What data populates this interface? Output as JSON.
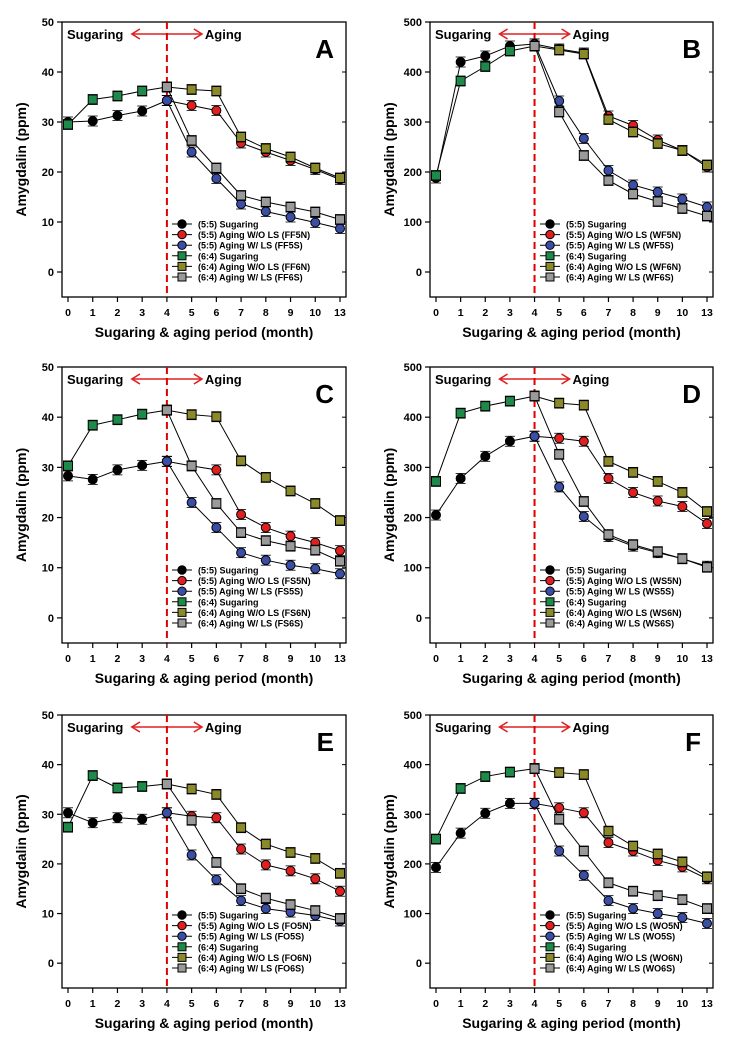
{
  "colors": {
    "sugaring_5_5": "#000000",
    "aging_wo_ls_5_5": "#e02020",
    "aging_w_ls_5_5": "#3a4ea8",
    "sugaring_6_4": "#1e8a4a",
    "aging_wo_ls_6_4": "#8a8a2a",
    "aging_w_ls_6_4": "#9a9a9a",
    "divider": "#e00000",
    "arrow": "#e02020"
  },
  "chart_data": [
    {
      "type": "line",
      "panel_letter": "A",
      "xlabel": "Sugaring & aging period (month)",
      "ylabel": "Amygdalin (ppm)",
      "x_ticks": [
        "0",
        "1",
        "2",
        "3",
        "4",
        "5",
        "6",
        "7",
        "8",
        "9",
        "10",
        "13"
      ],
      "ylim": [
        -5,
        50
      ],
      "y_ticks": [
        0,
        10,
        20,
        30,
        40,
        50
      ],
      "phase_labels": [
        "Sugaring",
        "Aging"
      ],
      "legend_position": "bottom-right",
      "series": [
        {
          "name": "(5:5) Sugaring",
          "color_key": "sugaring_5_5",
          "marker": "circle",
          "x_index": [
            0,
            1,
            2,
            3,
            4
          ],
          "values": [
            30.0,
            30.2,
            31.3,
            32.2,
            34.3
          ]
        },
        {
          "name": "(5:5) Aging W/O LS (FF5N)",
          "color_key": "aging_wo_ls_5_5",
          "marker": "circle",
          "x_index": [
            4,
            5,
            6,
            7,
            8,
            9,
            10,
            11
          ],
          "values": [
            34.3,
            33.3,
            32.3,
            25.8,
            24.0,
            22.3,
            20.5,
            18.5
          ]
        },
        {
          "name": "(5:5) Aging W/ LS (FF5S)",
          "color_key": "aging_w_ls_5_5",
          "marker": "circle",
          "x_index": [
            4,
            5,
            6,
            7,
            8,
            9,
            10,
            11
          ],
          "values": [
            34.3,
            24.0,
            18.7,
            13.6,
            12.1,
            11.0,
            9.9,
            8.7
          ]
        },
        {
          "name": "(6:4) Sugaring",
          "color_key": "sugaring_6_4",
          "marker": "square",
          "x_index": [
            0,
            1,
            2,
            3,
            4
          ],
          "values": [
            29.5,
            34.5,
            35.2,
            36.2,
            37.0
          ]
        },
        {
          "name": "(6:4) Aging W/O LS (FF6N)",
          "color_key": "aging_wo_ls_6_4",
          "marker": "square",
          "x_index": [
            4,
            5,
            6,
            7,
            8,
            9,
            10,
            11
          ],
          "values": [
            37.0,
            36.5,
            36.2,
            27.0,
            24.7,
            23.0,
            20.8,
            18.8
          ]
        },
        {
          "name": "(6:4) Aging W/ LS (FF6S)",
          "color_key": "aging_w_ls_6_4",
          "marker": "square",
          "x_index": [
            4,
            5,
            6,
            7,
            8,
            9,
            10,
            11
          ],
          "values": [
            37.0,
            26.3,
            20.8,
            15.3,
            14.0,
            13.0,
            12.0,
            10.5
          ]
        }
      ]
    },
    {
      "type": "line",
      "panel_letter": "B",
      "xlabel": "Sugaring & aging period (month)",
      "ylabel": "Amygdalin (ppm)",
      "x_ticks": [
        "0",
        "1",
        "2",
        "3",
        "4",
        "5",
        "6",
        "7",
        "8",
        "9",
        "10",
        "13"
      ],
      "ylim": [
        -50,
        500
      ],
      "y_ticks": [
        0,
        100,
        200,
        300,
        400,
        500
      ],
      "phase_labels": [
        "Sugaring",
        "Aging"
      ],
      "legend_position": "bottom-right",
      "series": [
        {
          "name": "(5:5) Sugaring",
          "color_key": "sugaring_5_5",
          "marker": "circle",
          "x_index": [
            0,
            1,
            2,
            3,
            4
          ],
          "values": [
            188,
            420,
            432,
            452,
            456
          ]
        },
        {
          "name": "(5:5) Aging W/O LS (WF5N)",
          "color_key": "aging_wo_ls_5_5",
          "marker": "circle",
          "x_index": [
            4,
            5,
            6,
            7,
            8,
            9,
            10,
            11
          ],
          "values": [
            456,
            446,
            438,
            312,
            293,
            264,
            243,
            210
          ]
        },
        {
          "name": "(5:5) Aging W/ LS (WF5S)",
          "color_key": "aging_w_ls_5_5",
          "marker": "circle",
          "x_index": [
            4,
            5,
            6,
            7,
            8,
            9,
            10,
            11
          ],
          "values": [
            456,
            342,
            267,
            203,
            174,
            160,
            146,
            130
          ]
        },
        {
          "name": "(6:4) Sugaring",
          "color_key": "sugaring_6_4",
          "marker": "square",
          "x_index": [
            0,
            1,
            2,
            3,
            4
          ],
          "values": [
            193,
            382,
            411,
            442,
            452
          ]
        },
        {
          "name": "(6:4) Aging W/O LS (WF6N)",
          "color_key": "aging_wo_ls_6_4",
          "marker": "square",
          "x_index": [
            4,
            5,
            6,
            7,
            8,
            9,
            10,
            11
          ],
          "values": [
            452,
            444,
            436,
            305,
            280,
            257,
            243,
            214
          ]
        },
        {
          "name": "(6:4) Aging W/ LS (WF6S)",
          "color_key": "aging_w_ls_6_4",
          "marker": "square",
          "x_index": [
            4,
            5,
            6,
            7,
            8,
            9,
            10,
            11
          ],
          "values": [
            452,
            320,
            233,
            183,
            156,
            141,
            127,
            112
          ]
        }
      ]
    },
    {
      "type": "line",
      "panel_letter": "C",
      "xlabel": "Sugaring & aging period (month)",
      "ylabel": "Amygdalin (ppm)",
      "x_ticks": [
        "0",
        "1",
        "2",
        "3",
        "4",
        "5",
        "6",
        "7",
        "8",
        "9",
        "10",
        "13"
      ],
      "ylim": [
        -5,
        50
      ],
      "y_ticks": [
        0,
        10,
        20,
        30,
        40,
        50
      ],
      "phase_labels": [
        "Sugaring",
        "Aging"
      ],
      "legend_position": "bottom-right",
      "series": [
        {
          "name": "(5:5) Sugaring",
          "color_key": "sugaring_5_5",
          "marker": "circle",
          "x_index": [
            0,
            1,
            2,
            3,
            4
          ],
          "values": [
            28.3,
            27.6,
            29.5,
            30.4,
            31.2
          ]
        },
        {
          "name": "(5:5) Aging W/O LS (FS5N)",
          "color_key": "aging_wo_ls_5_5",
          "marker": "circle",
          "x_index": [
            4,
            5,
            6,
            7,
            8,
            9,
            10,
            11
          ],
          "values": [
            31.2,
            30.3,
            29.5,
            20.6,
            18.0,
            16.3,
            15.0,
            13.4
          ]
        },
        {
          "name": "(5:5) Aging W/ LS (FS5S)",
          "color_key": "aging_w_ls_5_5",
          "marker": "circle",
          "x_index": [
            4,
            5,
            6,
            7,
            8,
            9,
            10,
            11
          ],
          "values": [
            31.2,
            23.0,
            18.0,
            13.0,
            11.5,
            10.5,
            9.8,
            8.8
          ]
        },
        {
          "name": "(6:4) Sugaring",
          "color_key": "sugaring_6_4",
          "marker": "square",
          "x_index": [
            0,
            1,
            2,
            3,
            4
          ],
          "values": [
            30.3,
            38.4,
            39.5,
            40.6,
            41.4
          ]
        },
        {
          "name": "(6:4) Aging W/O LS (FS6N)",
          "color_key": "aging_wo_ls_6_4",
          "marker": "square",
          "x_index": [
            4,
            5,
            6,
            7,
            8,
            9,
            10,
            11
          ],
          "values": [
            41.4,
            40.5,
            40.1,
            31.3,
            28.0,
            25.3,
            22.8,
            19.4
          ]
        },
        {
          "name": "(6:4) Aging W/ LS (FS6S)",
          "color_key": "aging_w_ls_6_4",
          "marker": "square",
          "x_index": [
            4,
            5,
            6,
            7,
            8,
            9,
            10,
            11
          ],
          "values": [
            41.4,
            30.3,
            22.8,
            17.0,
            15.4,
            14.3,
            13.5,
            11.3
          ]
        }
      ]
    },
    {
      "type": "line",
      "panel_letter": "D",
      "xlabel": "Sugaring & aging period (month)",
      "ylabel": "Amygdalin (ppm)",
      "x_ticks": [
        "0",
        "1",
        "2",
        "3",
        "4",
        "5",
        "6",
        "7",
        "8",
        "9",
        "10",
        "13"
      ],
      "ylim": [
        -50,
        500
      ],
      "y_ticks": [
        0,
        100,
        200,
        300,
        400,
        500
      ],
      "phase_labels": [
        "Sugaring",
        "Aging"
      ],
      "legend_position": "bottom-right",
      "series": [
        {
          "name": "(5:5) Sugaring",
          "color_key": "sugaring_5_5",
          "marker": "circle",
          "x_index": [
            0,
            1,
            2,
            3,
            4
          ],
          "values": [
            205,
            278,
            322,
            352,
            362
          ]
        },
        {
          "name": "(5:5) Aging W/O LS (WS5N)",
          "color_key": "aging_wo_ls_5_5",
          "marker": "circle",
          "x_index": [
            4,
            5,
            6,
            7,
            8,
            9,
            10,
            11
          ],
          "values": [
            362,
            358,
            352,
            278,
            250,
            233,
            222,
            188
          ]
        },
        {
          "name": "(5:5) Aging W/ LS (WS5S)",
          "color_key": "aging_w_ls_5_5",
          "marker": "circle",
          "x_index": [
            4,
            5,
            6,
            7,
            8,
            9,
            10,
            11
          ],
          "values": [
            362,
            261,
            202,
            162,
            143,
            130,
            118,
            103
          ]
        },
        {
          "name": "(6:4) Sugaring",
          "color_key": "sugaring_6_4",
          "marker": "square",
          "x_index": [
            0,
            1,
            2,
            3,
            4
          ],
          "values": [
            272,
            408,
            422,
            432,
            442
          ]
        },
        {
          "name": "(6:4) Aging W/O LS (WS6N)",
          "color_key": "aging_wo_ls_6_4",
          "marker": "square",
          "x_index": [
            4,
            5,
            6,
            7,
            8,
            9,
            10,
            11
          ],
          "values": [
            442,
            428,
            424,
            312,
            290,
            272,
            250,
            212
          ]
        },
        {
          "name": "(6:4) Aging W/ LS (WS6S)",
          "color_key": "aging_w_ls_6_4",
          "marker": "square",
          "x_index": [
            4,
            5,
            6,
            7,
            8,
            9,
            10,
            11
          ],
          "values": [
            442,
            326,
            232,
            166,
            146,
            132,
            118,
            101
          ]
        }
      ]
    },
    {
      "type": "line",
      "panel_letter": "E",
      "xlabel": "Sugaring & aging period (month)",
      "ylabel": "Amygdalin (ppm)",
      "x_ticks": [
        "0",
        "1",
        "2",
        "3",
        "4",
        "5",
        "6",
        "7",
        "8",
        "9",
        "10",
        "13"
      ],
      "ylim": [
        -5,
        50
      ],
      "y_ticks": [
        0,
        10,
        20,
        30,
        40,
        50
      ],
      "phase_labels": [
        "Sugaring",
        "Aging"
      ],
      "legend_position": "bottom-right",
      "series": [
        {
          "name": "(5:5) Sugaring",
          "color_key": "sugaring_5_5",
          "marker": "circle",
          "x_index": [
            0,
            1,
            2,
            3,
            4
          ],
          "values": [
            30.3,
            28.3,
            29.3,
            29.0,
            30.3
          ]
        },
        {
          "name": "(5:5) Aging W/O LS (FO5N)",
          "color_key": "aging_wo_ls_5_5",
          "marker": "circle",
          "x_index": [
            4,
            5,
            6,
            7,
            8,
            9,
            10,
            11
          ],
          "values": [
            30.3,
            29.6,
            29.3,
            23.0,
            19.8,
            18.6,
            17.0,
            14.5
          ]
        },
        {
          "name": "(5:5) Aging W/ LS (FO5S)",
          "color_key": "aging_w_ls_5_5",
          "marker": "circle",
          "x_index": [
            4,
            5,
            6,
            7,
            8,
            9,
            10,
            11
          ],
          "values": [
            30.3,
            21.8,
            16.8,
            12.6,
            11.0,
            10.3,
            9.6,
            8.5
          ]
        },
        {
          "name": "(6:4) Sugaring",
          "color_key": "sugaring_6_4",
          "marker": "square",
          "x_index": [
            0,
            1,
            2,
            3,
            4
          ],
          "values": [
            27.4,
            37.8,
            35.3,
            35.6,
            36.1
          ]
        },
        {
          "name": "(6:4) Aging W/O LS (FO6N)",
          "color_key": "aging_wo_ls_6_4",
          "marker": "square",
          "x_index": [
            4,
            5,
            6,
            7,
            8,
            9,
            10,
            11
          ],
          "values": [
            36.1,
            35.1,
            34.0,
            27.3,
            24.0,
            22.3,
            21.1,
            18.1
          ]
        },
        {
          "name": "(6:4) Aging W/ LS (FO6S)",
          "color_key": "aging_w_ls_6_4",
          "marker": "square",
          "x_index": [
            4,
            5,
            6,
            7,
            8,
            9,
            10,
            11
          ],
          "values": [
            36.1,
            28.8,
            20.3,
            15.0,
            13.1,
            11.8,
            10.6,
            9.0
          ]
        }
      ]
    },
    {
      "type": "line",
      "panel_letter": "F",
      "xlabel": "Sugaring & aging period (month)",
      "ylabel": "Amygdalin (ppm)",
      "x_ticks": [
        "0",
        "1",
        "2",
        "3",
        "4",
        "5",
        "6",
        "7",
        "8",
        "9",
        "10",
        "13"
      ],
      "ylim": [
        -50,
        500
      ],
      "y_ticks": [
        0,
        100,
        200,
        300,
        400,
        500
      ],
      "phase_labels": [
        "Sugaring",
        "Aging"
      ],
      "legend_position": "bottom-right",
      "series": [
        {
          "name": "(5:5) Sugaring",
          "color_key": "sugaring_5_5",
          "marker": "circle",
          "x_index": [
            0,
            1,
            2,
            3,
            4
          ],
          "values": [
            193,
            262,
            302,
            322,
            322
          ]
        },
        {
          "name": "(5:5) Aging W/O LS (WO5N)",
          "color_key": "aging_wo_ls_5_5",
          "marker": "circle",
          "x_index": [
            4,
            5,
            6,
            7,
            8,
            9,
            10,
            11
          ],
          "values": [
            322,
            313,
            303,
            243,
            226,
            207,
            194,
            170
          ]
        },
        {
          "name": "(5:5) Aging W/ LS (WO5S)",
          "color_key": "aging_w_ls_5_5",
          "marker": "circle",
          "x_index": [
            4,
            5,
            6,
            7,
            8,
            9,
            10,
            11
          ],
          "values": [
            322,
            226,
            177,
            126,
            110,
            100,
            92,
            80
          ]
        },
        {
          "name": "(6:4) Sugaring",
          "color_key": "sugaring_6_4",
          "marker": "square",
          "x_index": [
            0,
            1,
            2,
            3,
            4
          ],
          "values": [
            250,
            352,
            376,
            385,
            392
          ]
        },
        {
          "name": "(6:4) Aging W/O LS (WO6N)",
          "color_key": "aging_wo_ls_6_4",
          "marker": "square",
          "x_index": [
            4,
            5,
            6,
            7,
            8,
            9,
            10,
            11
          ],
          "values": [
            392,
            384,
            380,
            266,
            236,
            220,
            204,
            174
          ]
        },
        {
          "name": "(6:4) Aging W/ LS (WO6S)",
          "color_key": "aging_w_ls_6_4",
          "marker": "square",
          "x_index": [
            4,
            5,
            6,
            7,
            8,
            9,
            10,
            11
          ],
          "values": [
            392,
            290,
            226,
            162,
            145,
            136,
            128,
            110
          ]
        }
      ]
    }
  ]
}
